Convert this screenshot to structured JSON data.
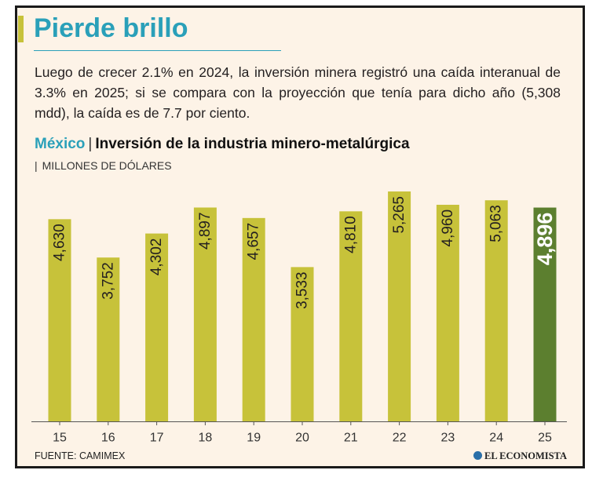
{
  "header": {
    "title": "Pierde brillo",
    "subtitle": "Luego de crecer 2.1% en 2024, la inversión minera registró una caída interanual de 3.3% en 2025; si se compara con la proyección que tenía para dicho año (5,308 mdd), la caída es de 7.7 por ciento."
  },
  "chart_header": {
    "country": "México",
    "separator": "|",
    "title": "Inversión de la industria minero-metalúrgica",
    "units_bar": "|",
    "units": "MILLONES DE DÓLARES"
  },
  "footer": {
    "source": "FUENTE: CAMIMEX",
    "brand": "EL ECONOMISTA"
  },
  "colors": {
    "accent": "#2aa0b9",
    "bar": "#c7c23a",
    "highlight_bar": "#5c7f2f",
    "background": "#fdf3e7"
  },
  "chart_data": {
    "type": "bar",
    "categories": [
      "15",
      "16",
      "17",
      "18",
      "19",
      "20",
      "21",
      "22",
      "23",
      "24",
      "25"
    ],
    "values": [
      4630,
      3752,
      4302,
      4897,
      4657,
      3533,
      4810,
      5265,
      4960,
      5063,
      4896
    ],
    "value_labels": [
      "4,630",
      "3,752",
      "4,302",
      "4,897",
      "4,657",
      "3,533",
      "4,810",
      "5,265",
      "4,960",
      "5,063",
      "4,896"
    ],
    "highlight_index": 10,
    "title": "Inversión de la industria minero-metalúrgica",
    "ylabel": "MILLONES DE DÓLARES",
    "xlabel": "",
    "grid": false
  }
}
